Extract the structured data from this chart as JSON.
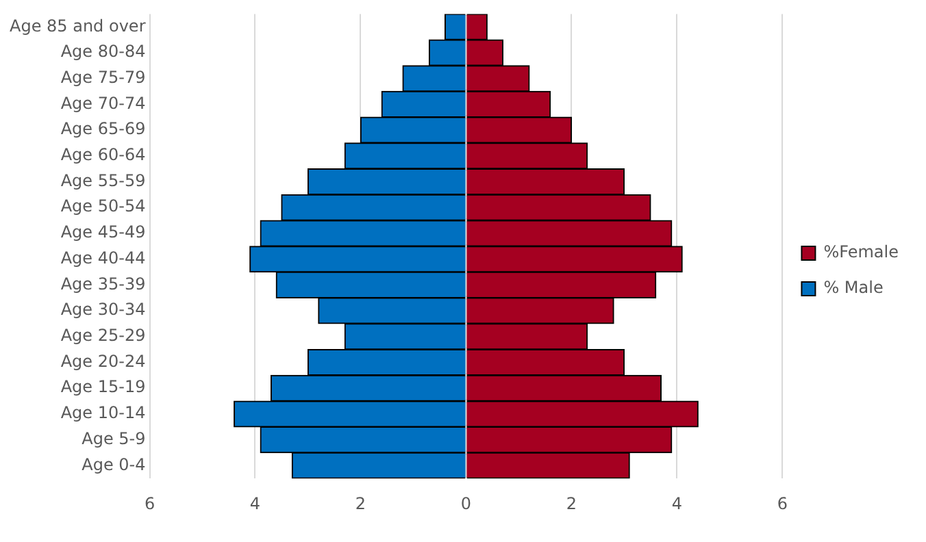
{
  "chart_data": {
    "type": "bar",
    "orientation": "horizontal",
    "stacked": true,
    "grid": "x",
    "legend": "right",
    "categories": [
      "Age 85 and over",
      "Age 80-84",
      "Age 75-79",
      "Age 70-74",
      "Age 65-69",
      "Age 60-64",
      "Age 55-59",
      "Age 50-54",
      "Age 45-49",
      "Age 40-44",
      "Age 35-39",
      "Age 30-34",
      "Age 25-29",
      "Age 20-24",
      "Age 15-19",
      "Age 10-14",
      "Age 5-9",
      "Age 0-4"
    ],
    "series": [
      {
        "name": "%Female",
        "color": "#a50021",
        "values": [
          0.4,
          0.7,
          1.2,
          1.6,
          2.0,
          2.3,
          3.0,
          3.5,
          3.9,
          4.1,
          3.6,
          2.8,
          2.3,
          3.0,
          3.7,
          4.4,
          3.9,
          3.1
        ]
      },
      {
        "name": "% Male",
        "color": "#0070c0",
        "values": [
          -0.4,
          -0.7,
          -1.2,
          -1.6,
          -2.0,
          -2.3,
          -3.0,
          -3.5,
          -3.9,
          -4.1,
          -3.6,
          -2.8,
          -2.3,
          -3.0,
          -3.7,
          -4.4,
          -3.9,
          -3.3
        ]
      }
    ],
    "xlim": [
      -6,
      6
    ],
    "xticks": [
      {
        "value": -6,
        "label": "6"
      },
      {
        "value": -4,
        "label": "4"
      },
      {
        "value": -2,
        "label": "2"
      },
      0,
      2,
      4,
      {
        "value": 6,
        "label": "6"
      }
    ]
  }
}
